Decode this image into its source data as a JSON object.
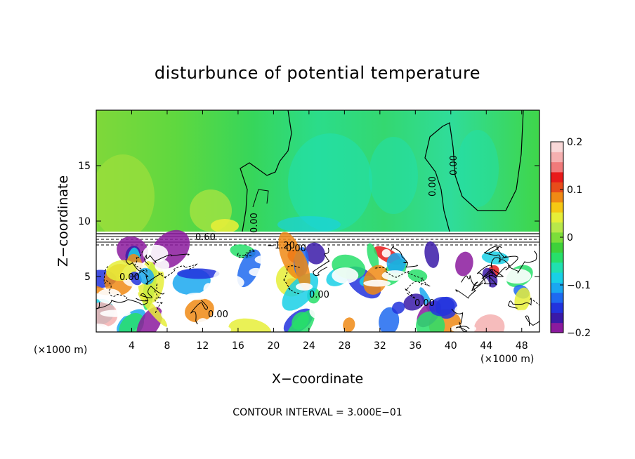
{
  "chart_data": {
    "type": "heatmap",
    "title": "disturbunce of potential temperature",
    "xlabel": "X−coordinate",
    "ylabel": "Z−coordinate",
    "x_unit_left": "(×1000 m)",
    "x_unit_right": "(×1000 m)",
    "xlim": [
      0,
      50
    ],
    "ylim": [
      0,
      20
    ],
    "x_ticks": [
      "4",
      "8",
      "12",
      "16",
      "20",
      "24",
      "28",
      "32",
      "36",
      "40",
      "44",
      "48"
    ],
    "y_ticks": [
      "5",
      "10",
      "15"
    ],
    "colorbar": {
      "min": -0.2,
      "max": 0.2,
      "tick_labels": [
        "0.2",
        "0.1",
        "0",
        "−0.1",
        "−0.2"
      ],
      "colors": [
        "#8b1a9e",
        "#3a1aa8",
        "#2233dd",
        "#1e6af0",
        "#1aa8f0",
        "#19d0e6",
        "#20e0b0",
        "#27df6a",
        "#3ed13a",
        "#7cde3a",
        "#b8e84a",
        "#e6ee38",
        "#f5c814",
        "#f08a14",
        "#e84c1a",
        "#e81a1a",
        "#f07a7a",
        "#f5b0b0",
        "#f9d8d8"
      ]
    },
    "contour_labels": [
      "0.60",
      "−1.20",
      "0.00",
      "0.00",
      "0.00",
      "0.00",
      "0.00",
      "0.00",
      "0.00",
      "0.00"
    ],
    "footnote": "CONTOUR INTERVAL = 3.000E−01",
    "grid": false
  }
}
